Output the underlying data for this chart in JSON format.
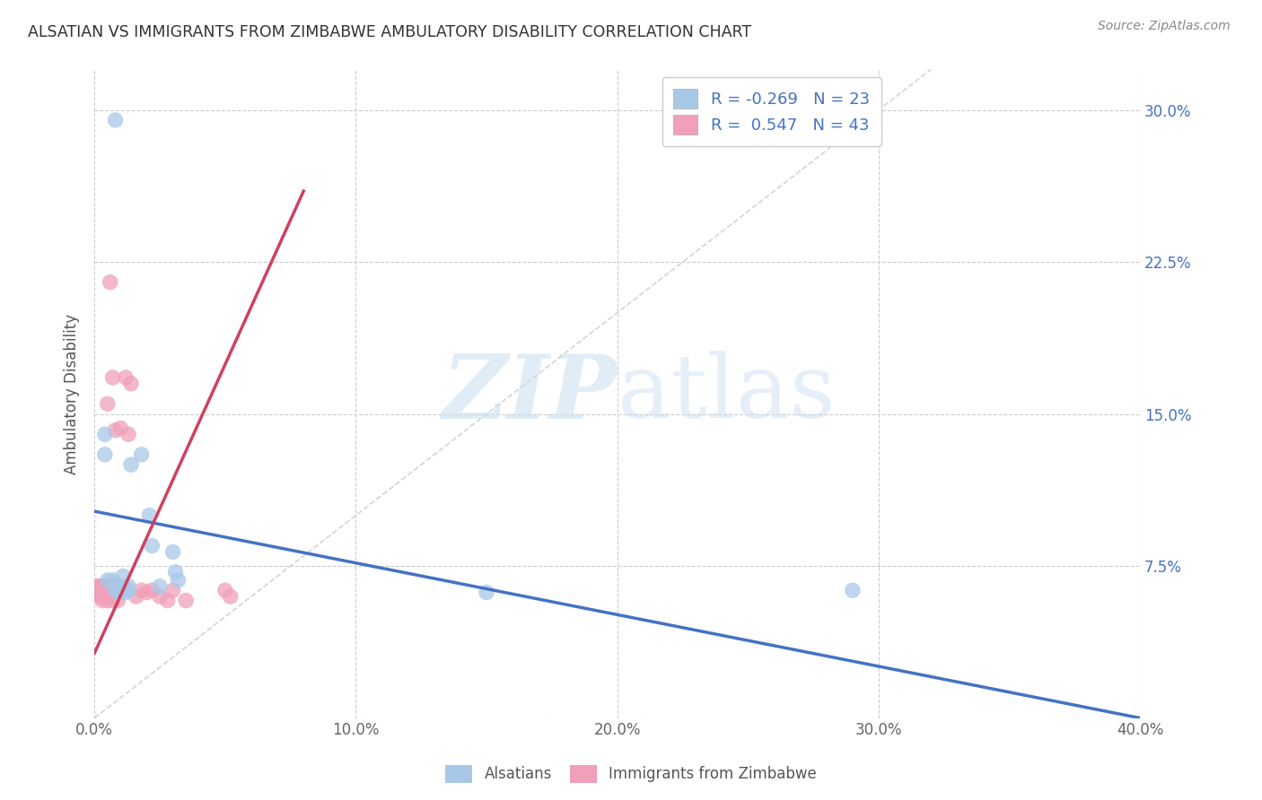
{
  "title": "ALSATIAN VS IMMIGRANTS FROM ZIMBABWE AMBULATORY DISABILITY CORRELATION CHART",
  "source": "Source: ZipAtlas.com",
  "ylabel": "Ambulatory Disability",
  "xlim": [
    0.0,
    0.4
  ],
  "ylim": [
    0.0,
    0.32
  ],
  "xticks": [
    0.0,
    0.1,
    0.2,
    0.3,
    0.4
  ],
  "yticks_right": [
    0.0,
    0.075,
    0.15,
    0.225,
    0.3
  ],
  "ytick_labels_right": [
    "",
    "7.5%",
    "15.0%",
    "22.5%",
    "30.0%"
  ],
  "xtick_labels": [
    "0.0%",
    "10.0%",
    "20.0%",
    "30.0%",
    "40.0%"
  ],
  "R_alsatian": -0.269,
  "N_alsatian": 23,
  "R_zimbabwe": 0.547,
  "N_zimbabwe": 43,
  "color_alsatian": "#A8C8E8",
  "color_zimbabwe": "#F0A0B8",
  "line_color_alsatian": "#4472C4",
  "line_color_zimbabwe": "#D04060",
  "diagonal_color": "#D0D0D0",
  "watermark_zip": "ZIP",
  "watermark_atlas": "atlas",
  "alsatian_x": [
    0.008,
    0.004,
    0.004,
    0.005,
    0.007,
    0.008,
    0.009,
    0.01,
    0.01,
    0.011,
    0.012,
    0.013,
    0.013,
    0.014,
    0.018,
    0.021,
    0.022,
    0.025,
    0.03,
    0.031,
    0.032,
    0.15,
    0.29
  ],
  "alsatian_y": [
    0.295,
    0.14,
    0.13,
    0.068,
    0.068,
    0.063,
    0.062,
    0.063,
    0.065,
    0.07,
    0.062,
    0.063,
    0.065,
    0.125,
    0.13,
    0.1,
    0.085,
    0.065,
    0.082,
    0.072,
    0.068,
    0.062,
    0.063
  ],
  "zimbabwe_x": [
    0.001,
    0.001,
    0.002,
    0.002,
    0.002,
    0.003,
    0.003,
    0.003,
    0.003,
    0.004,
    0.004,
    0.004,
    0.005,
    0.005,
    0.005,
    0.005,
    0.006,
    0.006,
    0.006,
    0.007,
    0.007,
    0.007,
    0.007,
    0.008,
    0.008,
    0.009,
    0.009,
    0.01,
    0.01,
    0.011,
    0.012,
    0.013,
    0.014,
    0.016,
    0.018,
    0.02,
    0.022,
    0.025,
    0.028,
    0.03,
    0.035,
    0.05,
    0.052
  ],
  "zimbabwe_y": [
    0.065,
    0.062,
    0.065,
    0.062,
    0.06,
    0.065,
    0.062,
    0.06,
    0.058,
    0.065,
    0.063,
    0.06,
    0.155,
    0.065,
    0.062,
    0.058,
    0.215,
    0.065,
    0.062,
    0.168,
    0.065,
    0.062,
    0.058,
    0.142,
    0.065,
    0.062,
    0.058,
    0.143,
    0.062,
    0.065,
    0.168,
    0.14,
    0.165,
    0.06,
    0.063,
    0.062,
    0.063,
    0.06,
    0.058,
    0.063,
    0.058,
    0.063,
    0.06
  ],
  "trend_als_x0": 0.0,
  "trend_als_x1": 0.4,
  "trend_als_y0": 0.102,
  "trend_als_y1": 0.0,
  "trend_zim_x0": 0.0,
  "trend_zim_x1": 0.08,
  "trend_zim_y0": 0.032,
  "trend_zim_y1": 0.26
}
